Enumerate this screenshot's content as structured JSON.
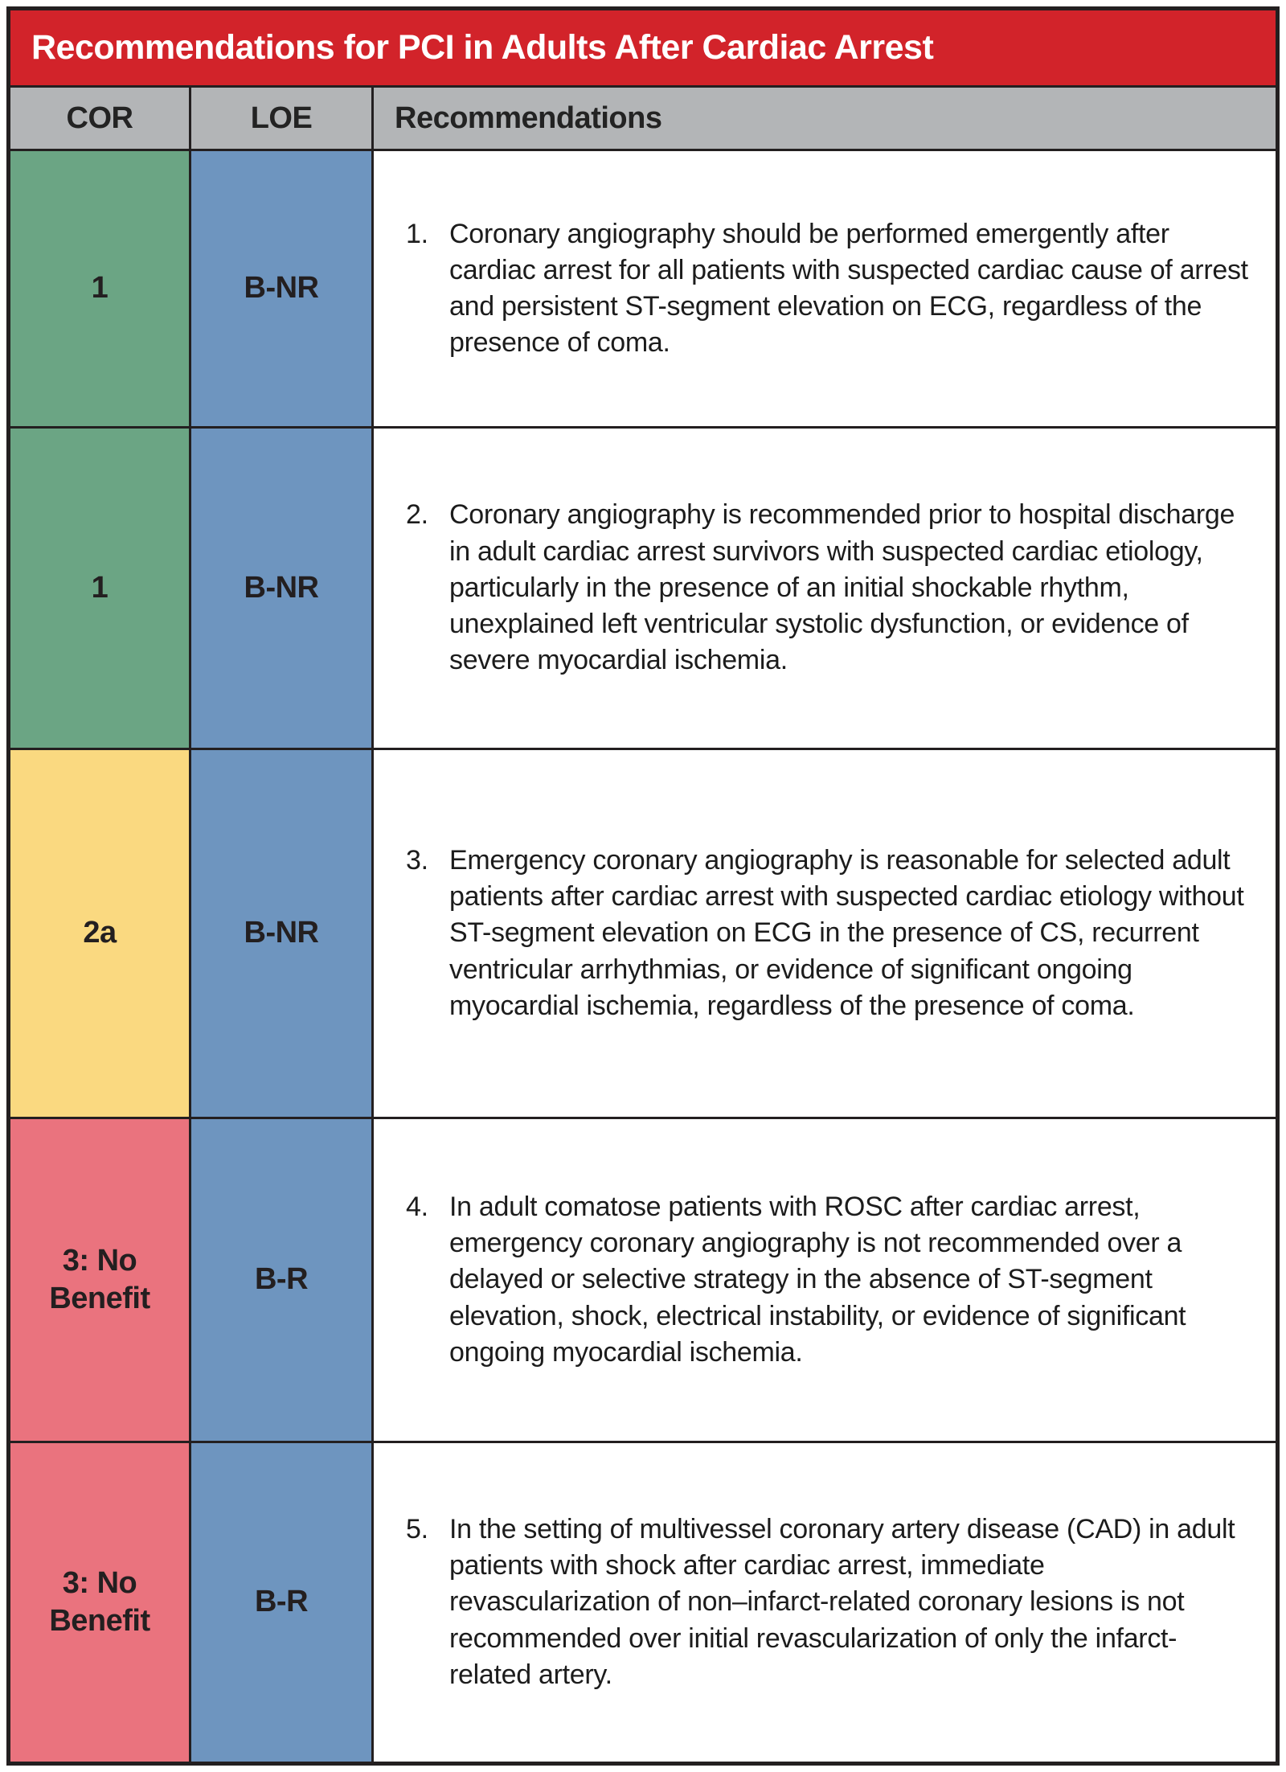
{
  "title": "Recommendations for PCI in Adults After Cardiac Arrest",
  "columns": {
    "cor": "COR",
    "loe": "LOE",
    "rec": "Recommendations"
  },
  "colors": {
    "title_bar_red": "#D2232A",
    "header_gray": "#B3B5B7",
    "loe_blue": "#6E95BF",
    "cor_green": "#6BA584",
    "cor_yellow": "#FAD980",
    "cor_red": "#EA737E",
    "border_black": "#231F20"
  },
  "rows": [
    {
      "cor": "1",
      "cor_bg": "#6BA584",
      "loe": "B-NR",
      "loe_bg": "#6E95BF",
      "num": "1.",
      "text": "Coronary angiography should be performed emergently after cardiac arrest for all patients with suspected cardiac cause of arrest and persistent ST-segment elevation on ECG, regardless of the presence of coma."
    },
    {
      "cor": "1",
      "cor_bg": "#6BA584",
      "loe": "B-NR",
      "loe_bg": "#6E95BF",
      "num": "2.",
      "text": "Coronary angiography is recommended prior to hospital discharge in adult cardiac arrest survivors with suspected cardiac etiology, particularly in the presence of an initial shockable rhythm, unexplained left ventricular systolic dysfunction, or evidence of severe myocardial ischemia."
    },
    {
      "cor": "2a",
      "cor_bg": "#FAD980",
      "loe": "B-NR",
      "loe_bg": "#6E95BF",
      "num": "3.",
      "text": "Emergency coronary angiography is reasonable for selected adult patients after cardiac arrest with suspected cardiac etiology without ST-segment elevation on ECG in the presence of CS, recurrent ventricular arrhythmias, or evidence of significant ongoing myocardial ischemia, regardless of the presence of coma."
    },
    {
      "cor": "3: No Benefit",
      "cor_bg": "#EA737E",
      "loe": "B-R",
      "loe_bg": "#6E95BF",
      "num": "4.",
      "text": "In adult comatose patients with ROSC after cardiac arrest, emergency coronary angiography is not recommended over a delayed or selective strategy in the absence of ST-segment elevation, shock, electrical instability, or evidence of significant ongoing myocardial ischemia."
    },
    {
      "cor": "3: No Benefit",
      "cor_bg": "#EA737E",
      "loe": "B-R",
      "loe_bg": "#6E95BF",
      "num": "5.",
      "text": "In the setting of multivessel coronary artery disease (CAD) in adult patients with shock after cardiac arrest, immediate revascularization of non–infarct-related coronary lesions is not recommended over initial revascularization of only the infarct-related artery."
    }
  ]
}
